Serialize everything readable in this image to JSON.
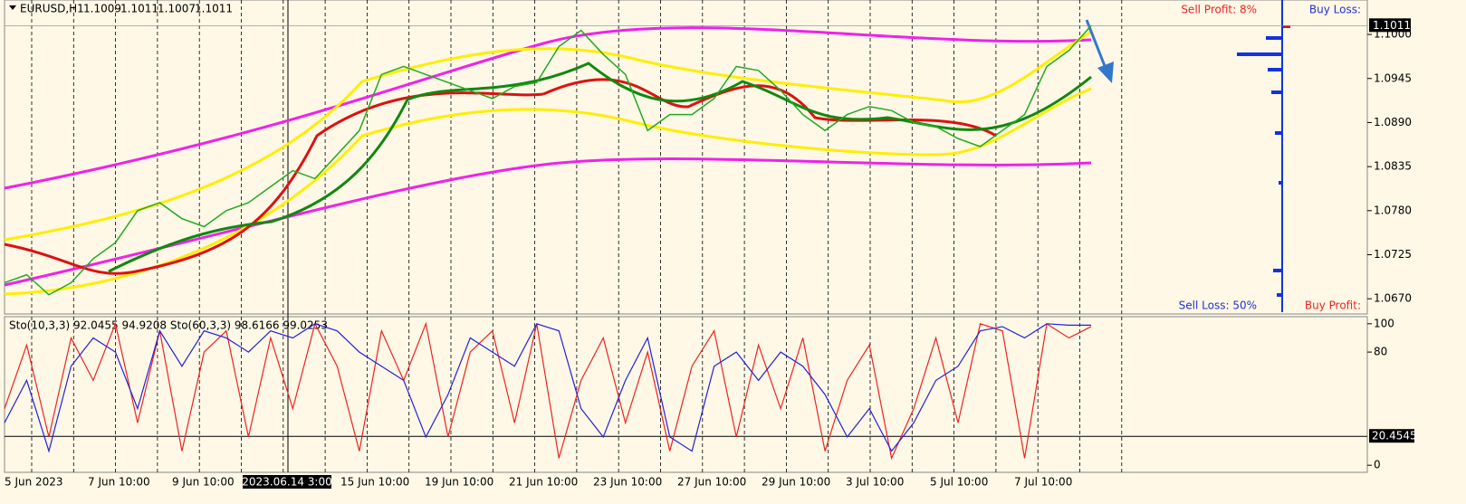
{
  "header": {
    "symbol": "EURUSD,H1",
    "ohlc": [
      "1.1009",
      "1.1011",
      "1.1007",
      "1.1011"
    ]
  },
  "panel_labels": {
    "sell_profit": "Sell Profit: 8%",
    "buy_loss": "Buy Loss:",
    "sell_loss": "Sell Loss: 50%",
    "buy_profit": "Buy Profit:"
  },
  "main_chart": {
    "type": "line",
    "color": "#22aa22",
    "ylim": [
      1.0651,
      1.1043
    ],
    "yticks": [
      {
        "value": 1.1,
        "label": "1.1000"
      },
      1.0945,
      {
        "value": 1.089,
        "label": "1.0890"
      },
      1.0835,
      {
        "value": 1.078,
        "label": "1.0780"
      },
      1.0725,
      {
        "value": 1.067,
        "label": "1.0670"
      }
    ],
    "current_price": 1.1011,
    "values": [
      1.069,
      1.07,
      1.0675,
      1.069,
      1.072,
      1.074,
      1.078,
      1.079,
      1.077,
      1.076,
      1.078,
      1.079,
      1.081,
      1.083,
      1.082,
      1.085,
      1.088,
      1.095,
      1.096,
      1.095,
      1.094,
      1.093,
      1.092,
      1.0935,
      1.094,
      1.0985,
      1.1005,
      1.0975,
      1.095,
      1.088,
      1.09,
      1.09,
      1.092,
      1.096,
      1.0955,
      1.093,
      1.09,
      1.088,
      1.09,
      1.091,
      1.0905,
      1.089,
      1.0885,
      1.087,
      1.086,
      1.088,
      1.09,
      1.096,
      1.098,
      1.1011
    ]
  },
  "oscillator": {
    "type": "line",
    "label": "Sto(10,3,3) 92.0455 94.9208  Sto(60,3,3) 98.6166 99.0253",
    "ylim": [
      -5,
      105
    ],
    "yticks": [
      100,
      80,
      0
    ],
    "level": 20.4545,
    "series": [
      {
        "name": "Sto(10,3,3)",
        "color": "#ee2222",
        "values": [
          40,
          85,
          20,
          90,
          60,
          100,
          30,
          95,
          10,
          80,
          95,
          20,
          90,
          40,
          100,
          70,
          10,
          95,
          60,
          100,
          20,
          80,
          95,
          30,
          100,
          5,
          60,
          90,
          30,
          80,
          10,
          70,
          95,
          20,
          85,
          40,
          90,
          10,
          60,
          85,
          5,
          40,
          90,
          30,
          100,
          95,
          5,
          100,
          90,
          98
        ]
      },
      {
        "name": "Sto(60,3,3)",
        "color": "#2222dd",
        "values": [
          30,
          60,
          10,
          70,
          90,
          80,
          40,
          95,
          70,
          95,
          90,
          80,
          95,
          90,
          100,
          95,
          80,
          70,
          60,
          20,
          50,
          90,
          80,
          70,
          100,
          95,
          40,
          20,
          60,
          90,
          20,
          10,
          70,
          80,
          60,
          80,
          70,
          50,
          20,
          40,
          10,
          30,
          60,
          70,
          95,
          98,
          90,
          100,
          99,
          99
        ]
      }
    ]
  },
  "time_axis": {
    "labels": [
      "5 Jun 2023",
      "7 Jun 10:00",
      "9 Jun 10:00",
      "15 Jun 10:00",
      "19 Jun 10:00",
      "21 Jun 10:00",
      "23 Jun 10:00",
      "27 Jun 10:00",
      "29 Jun 10:00",
      "3 Jul 10:00",
      "5 Jul 10:00",
      "7 Jul 10:00"
    ],
    "crosshair": "2023.06.14 3:00"
  }
}
